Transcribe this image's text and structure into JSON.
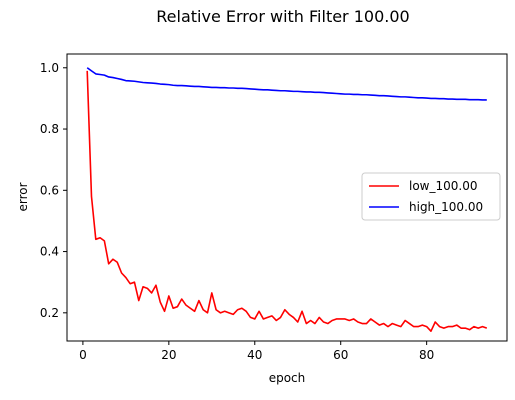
{
  "chart_data": {
    "type": "line",
    "title": "Relative Error with Filter 100.00",
    "xlabel": "epoch",
    "ylabel": "error",
    "xlim": [
      -3.7,
      98.7
    ],
    "ylim": [
      0.108,
      1.045
    ],
    "xticks": [
      0,
      20,
      40,
      60,
      80
    ],
    "yticks": [
      0.2,
      0.4,
      0.6,
      0.8,
      1.0
    ],
    "grid": false,
    "legend_position": "center-right",
    "series": [
      {
        "name": "low_100.00",
        "color": "#ff0000",
        "x": [
          1,
          2,
          3,
          4,
          5,
          6,
          7,
          8,
          9,
          10,
          11,
          12,
          13,
          14,
          15,
          16,
          17,
          18,
          19,
          20,
          21,
          22,
          23,
          24,
          25,
          26,
          27,
          28,
          29,
          30,
          31,
          32,
          33,
          34,
          35,
          36,
          37,
          38,
          39,
          40,
          41,
          42,
          43,
          44,
          45,
          46,
          47,
          48,
          49,
          50,
          51,
          52,
          53,
          54,
          55,
          56,
          57,
          58,
          59,
          60,
          61,
          62,
          63,
          64,
          65,
          66,
          67,
          68,
          69,
          70,
          71,
          72,
          73,
          74,
          75,
          76,
          77,
          78,
          79,
          80,
          81,
          82,
          83,
          84,
          85,
          86,
          87,
          88,
          89,
          90,
          91,
          92,
          93,
          94
        ],
        "y": [
          0.99,
          0.58,
          0.44,
          0.445,
          0.435,
          0.36,
          0.375,
          0.365,
          0.33,
          0.315,
          0.295,
          0.3,
          0.24,
          0.285,
          0.28,
          0.265,
          0.29,
          0.235,
          0.205,
          0.255,
          0.215,
          0.22,
          0.245,
          0.225,
          0.215,
          0.205,
          0.24,
          0.21,
          0.2,
          0.265,
          0.21,
          0.2,
          0.205,
          0.2,
          0.195,
          0.21,
          0.215,
          0.205,
          0.185,
          0.18,
          0.205,
          0.18,
          0.185,
          0.19,
          0.175,
          0.185,
          0.21,
          0.195,
          0.185,
          0.17,
          0.205,
          0.165,
          0.175,
          0.165,
          0.185,
          0.17,
          0.165,
          0.175,
          0.18,
          0.18,
          0.18,
          0.175,
          0.18,
          0.17,
          0.165,
          0.165,
          0.18,
          0.17,
          0.16,
          0.165,
          0.155,
          0.165,
          0.16,
          0.155,
          0.175,
          0.165,
          0.155,
          0.155,
          0.16,
          0.155,
          0.14,
          0.17,
          0.155,
          0.15,
          0.155,
          0.155,
          0.16,
          0.15,
          0.15,
          0.145,
          0.155,
          0.15,
          0.155,
          0.15
        ]
      },
      {
        "name": "high_100.00",
        "color": "#0000ff",
        "x": [
          1,
          2,
          3,
          4,
          5,
          6,
          7,
          8,
          9,
          10,
          11,
          12,
          13,
          14,
          15,
          16,
          17,
          18,
          19,
          20,
          21,
          22,
          23,
          24,
          25,
          26,
          27,
          28,
          29,
          30,
          31,
          32,
          33,
          34,
          35,
          36,
          37,
          38,
          39,
          40,
          41,
          42,
          43,
          44,
          45,
          46,
          47,
          48,
          49,
          50,
          51,
          52,
          53,
          54,
          55,
          56,
          57,
          58,
          59,
          60,
          61,
          62,
          63,
          64,
          65,
          66,
          67,
          68,
          69,
          70,
          71,
          72,
          73,
          74,
          75,
          76,
          77,
          78,
          79,
          80,
          81,
          82,
          83,
          84,
          85,
          86,
          87,
          88,
          89,
          90,
          91,
          92,
          93,
          94
        ],
        "y": [
          1.0,
          0.99,
          0.98,
          0.978,
          0.976,
          0.97,
          0.968,
          0.965,
          0.962,
          0.958,
          0.957,
          0.956,
          0.954,
          0.952,
          0.951,
          0.95,
          0.949,
          0.947,
          0.946,
          0.945,
          0.943,
          0.942,
          0.942,
          0.941,
          0.94,
          0.939,
          0.939,
          0.938,
          0.937,
          0.936,
          0.936,
          0.935,
          0.935,
          0.934,
          0.934,
          0.933,
          0.933,
          0.932,
          0.931,
          0.93,
          0.929,
          0.928,
          0.928,
          0.927,
          0.926,
          0.925,
          0.925,
          0.924,
          0.923,
          0.923,
          0.922,
          0.921,
          0.921,
          0.92,
          0.92,
          0.919,
          0.918,
          0.917,
          0.916,
          0.915,
          0.914,
          0.914,
          0.913,
          0.913,
          0.912,
          0.912,
          0.911,
          0.91,
          0.909,
          0.909,
          0.908,
          0.907,
          0.906,
          0.905,
          0.905,
          0.904,
          0.903,
          0.902,
          0.902,
          0.901,
          0.9,
          0.9,
          0.899,
          0.899,
          0.898,
          0.898,
          0.897,
          0.897,
          0.897,
          0.896,
          0.896,
          0.896,
          0.895,
          0.895
        ]
      }
    ]
  }
}
